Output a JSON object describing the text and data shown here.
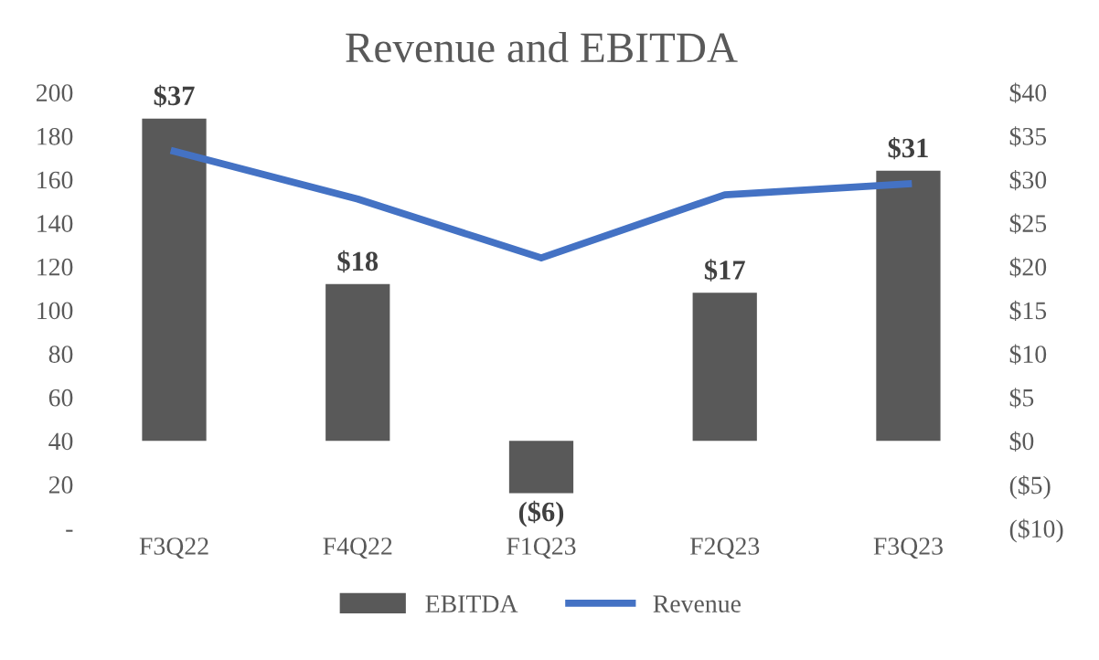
{
  "chart_data": {
    "type": "bar",
    "title": "Revenue and EBITDA",
    "categories": [
      "F3Q22",
      "F4Q22",
      "F1Q23",
      "F2Q23",
      "F3Q23"
    ],
    "series": [
      {
        "name": "EBITDA",
        "axis": "y2",
        "color": "#595959",
        "values": [
          37,
          18,
          -6,
          17,
          31
        ],
        "value_labels": [
          "$37",
          "$18",
          "($6)",
          "$17",
          "$31"
        ]
      },
      {
        "name": "Revenue",
        "type": "line",
        "color": "#4472c4",
        "values": [
          173,
          151,
          124,
          153,
          158
        ]
      }
    ],
    "ylim": [
      0,
      200
    ],
    "yticks": [
      {
        "value": 0,
        "label": "-"
      },
      20,
      40,
      60,
      80,
      100,
      120,
      140,
      160,
      180,
      200
    ],
    "y2lim": [
      -10,
      40
    ],
    "y2ticks": [
      {
        "value": -10,
        "label": "($10)"
      },
      {
        "value": -5,
        "label": "($5)"
      },
      {
        "value": 0,
        "label": "$0"
      },
      {
        "value": 5,
        "label": "$5"
      },
      {
        "value": 10,
        "label": "$10"
      },
      {
        "value": 15,
        "label": "$15"
      },
      {
        "value": 20,
        "label": "$20"
      },
      {
        "value": 25,
        "label": "$25"
      },
      {
        "value": 30,
        "label": "$30"
      },
      {
        "value": 35,
        "label": "$35"
      },
      {
        "value": 40,
        "label": "$40"
      }
    ],
    "grid": false,
    "legend": "bottom",
    "marker": "none",
    "line_style": "solid"
  }
}
